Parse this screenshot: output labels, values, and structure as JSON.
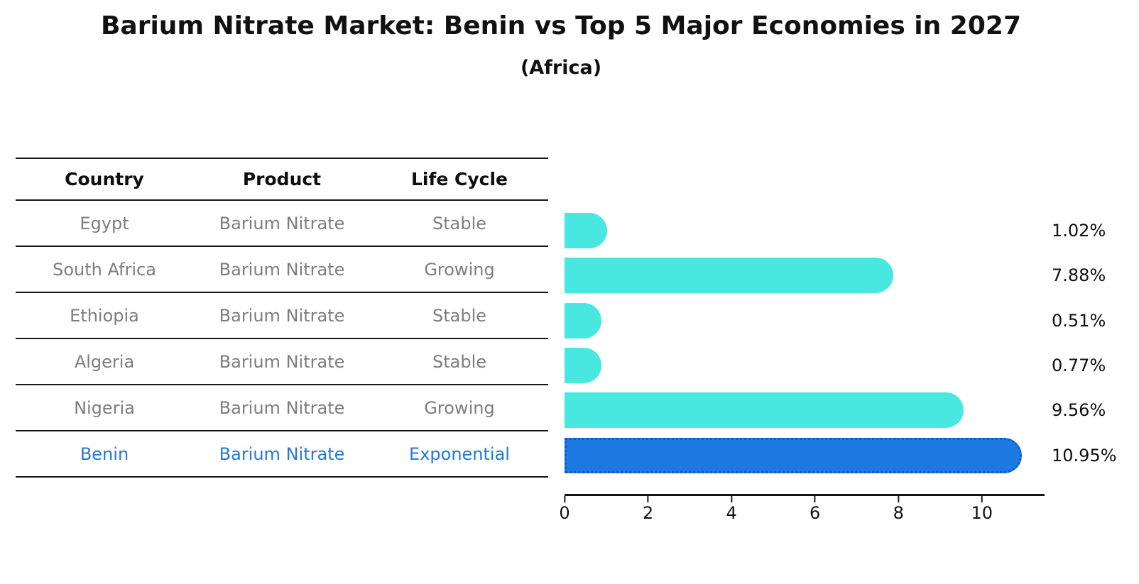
{
  "title": "Barium Nitrate Market: Benin vs Top 5 Major Economies in 2027",
  "subtitle": "(Africa)",
  "table": {
    "headers": [
      "Country",
      "Product",
      "Life Cycle"
    ],
    "rows": [
      {
        "country": "Egypt",
        "product": "Barium Nitrate",
        "life_cycle": "Stable",
        "highlight": false
      },
      {
        "country": "South Africa",
        "product": "Barium Nitrate",
        "life_cycle": "Growing",
        "highlight": false
      },
      {
        "country": "Ethiopia",
        "product": "Barium Nitrate",
        "life_cycle": "Stable",
        "highlight": false
      },
      {
        "country": "Algeria",
        "product": "Barium Nitrate",
        "life_cycle": "Stable",
        "highlight": false
      },
      {
        "country": "Nigeria",
        "product": "Barium Nitrate",
        "life_cycle": "Growing",
        "highlight": false
      },
      {
        "country": "Benin",
        "product": "Barium Nitrate",
        "life_cycle": "Exponential",
        "highlight": true
      }
    ]
  },
  "chart_data": {
    "type": "bar",
    "orientation": "horizontal",
    "title": "Barium Nitrate Market: Benin vs Top 5 Major Economies in 2027 (Africa)",
    "categories": [
      "Egypt",
      "South Africa",
      "Ethiopia",
      "Algeria",
      "Nigeria",
      "Benin"
    ],
    "values": [
      1.02,
      7.88,
      0.51,
      0.77,
      9.56,
      10.95
    ],
    "value_labels": [
      "1.02%",
      "7.88%",
      "0.51%",
      "0.77%",
      "9.56%",
      "10.95%"
    ],
    "unit": "percent",
    "xlabel": "",
    "ylabel": "",
    "xlim": [
      0,
      11.5
    ],
    "x_ticks": [
      0,
      2,
      4,
      6,
      8,
      10
    ],
    "grid": false,
    "legend": false,
    "bar_color": "#48e8e0",
    "highlight_bar_color": "#1d7ae2",
    "highlight_edge_color": "#1457c9",
    "highlight_index": 5,
    "highlight_text_color": "#2478d4"
  }
}
